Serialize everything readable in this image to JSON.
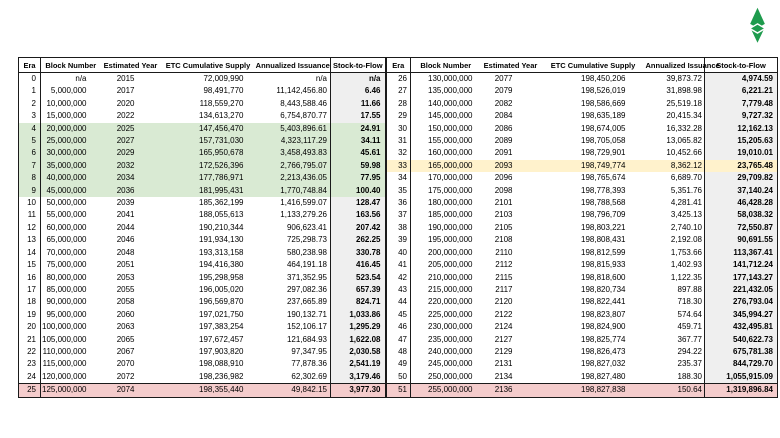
{
  "logo": {
    "label": "ethereum-classic-logo",
    "green": "#1e9b4d"
  },
  "colors": {
    "highlight_green": "#d9ead3",
    "highlight_yellow": "#fff2cc",
    "highlight_pink": "#f4cccc",
    "stock_to_flow_column_gray": "#efefef",
    "border": "#1a1a1a"
  },
  "columns": [
    "Era",
    "Block Number",
    "Estimated Year",
    "ETC Cumulative Supply",
    "Annualized Issuance",
    "Stock-to-Flow"
  ],
  "left_rows": [
    {
      "era": "0",
      "block": "n/a",
      "year": "2015",
      "supply": "72,009,990",
      "issuance": "n/a",
      "s2f": "n/a",
      "hl": ""
    },
    {
      "era": "1",
      "block": "5,000,000",
      "year": "2017",
      "supply": "98,491,770",
      "issuance": "11,142,456.80",
      "s2f": "6.46",
      "hl": ""
    },
    {
      "era": "2",
      "block": "10,000,000",
      "year": "2020",
      "supply": "118,559,270",
      "issuance": "8,443,588.46",
      "s2f": "11.66",
      "hl": ""
    },
    {
      "era": "3",
      "block": "15,000,000",
      "year": "2022",
      "supply": "134,613,270",
      "issuance": "6,754,870.77",
      "s2f": "17.55",
      "hl": ""
    },
    {
      "era": "4",
      "block": "20,000,000",
      "year": "2025",
      "supply": "147,456,470",
      "issuance": "5,403,896.61",
      "s2f": "24.91",
      "hl": "green"
    },
    {
      "era": "5",
      "block": "25,000,000",
      "year": "2027",
      "supply": "157,731,030",
      "issuance": "4,323,117.29",
      "s2f": "34.11",
      "hl": "green"
    },
    {
      "era": "6",
      "block": "30,000,000",
      "year": "2029",
      "supply": "165,950,678",
      "issuance": "3,458,493.83",
      "s2f": "45.61",
      "hl": "green"
    },
    {
      "era": "7",
      "block": "35,000,000",
      "year": "2032",
      "supply": "172,526,396",
      "issuance": "2,766,795.07",
      "s2f": "59.98",
      "hl": "green"
    },
    {
      "era": "8",
      "block": "40,000,000",
      "year": "2034",
      "supply": "177,786,971",
      "issuance": "2,213,436.05",
      "s2f": "77.95",
      "hl": "green"
    },
    {
      "era": "9",
      "block": "45,000,000",
      "year": "2036",
      "supply": "181,995,431",
      "issuance": "1,770,748.84",
      "s2f": "100.40",
      "hl": "green"
    },
    {
      "era": "10",
      "block": "50,000,000",
      "year": "2039",
      "supply": "185,362,199",
      "issuance": "1,416,599.07",
      "s2f": "128.47",
      "hl": ""
    },
    {
      "era": "11",
      "block": "55,000,000",
      "year": "2041",
      "supply": "188,055,613",
      "issuance": "1,133,279.26",
      "s2f": "163.56",
      "hl": ""
    },
    {
      "era": "12",
      "block": "60,000,000",
      "year": "2044",
      "supply": "190,210,344",
      "issuance": "906,623.41",
      "s2f": "207.42",
      "hl": ""
    },
    {
      "era": "13",
      "block": "65,000,000",
      "year": "2046",
      "supply": "191,934,130",
      "issuance": "725,298.73",
      "s2f": "262.25",
      "hl": ""
    },
    {
      "era": "14",
      "block": "70,000,000",
      "year": "2048",
      "supply": "193,313,158",
      "issuance": "580,238.98",
      "s2f": "330.78",
      "hl": ""
    },
    {
      "era": "15",
      "block": "75,000,000",
      "year": "2051",
      "supply": "194,416,380",
      "issuance": "464,191.18",
      "s2f": "416.45",
      "hl": ""
    },
    {
      "era": "16",
      "block": "80,000,000",
      "year": "2053",
      "supply": "195,298,958",
      "issuance": "371,352.95",
      "s2f": "523.54",
      "hl": ""
    },
    {
      "era": "17",
      "block": "85,000,000",
      "year": "2055",
      "supply": "196,005,020",
      "issuance": "297,082.36",
      "s2f": "657.39",
      "hl": ""
    },
    {
      "era": "18",
      "block": "90,000,000",
      "year": "2058",
      "supply": "196,569,870",
      "issuance": "237,665.89",
      "s2f": "824.71",
      "hl": ""
    },
    {
      "era": "19",
      "block": "95,000,000",
      "year": "2060",
      "supply": "197,021,750",
      "issuance": "190,132.71",
      "s2f": "1,033.86",
      "hl": ""
    },
    {
      "era": "20",
      "block": "100,000,000",
      "year": "2063",
      "supply": "197,383,254",
      "issuance": "152,106.17",
      "s2f": "1,295.29",
      "hl": ""
    },
    {
      "era": "21",
      "block": "105,000,000",
      "year": "2065",
      "supply": "197,672,457",
      "issuance": "121,684.93",
      "s2f": "1,622.08",
      "hl": ""
    },
    {
      "era": "22",
      "block": "110,000,000",
      "year": "2067",
      "supply": "197,903,820",
      "issuance": "97,347.95",
      "s2f": "2,030.58",
      "hl": ""
    },
    {
      "era": "23",
      "block": "115,000,000",
      "year": "2070",
      "supply": "198,088,910",
      "issuance": "77,878.36",
      "s2f": "2,541.19",
      "hl": ""
    },
    {
      "era": "24",
      "block": "120,000,000",
      "year": "2072",
      "supply": "198,236,982",
      "issuance": "62,302.69",
      "s2f": "3,179.46",
      "hl": ""
    },
    {
      "era": "25",
      "block": "125,000,000",
      "year": "2074",
      "supply": "198,355,440",
      "issuance": "49,842.15",
      "s2f": "3,977.30",
      "hl": "pink"
    }
  ],
  "right_rows": [
    {
      "era": "26",
      "block": "130,000,000",
      "year": "2077",
      "supply": "198,450,206",
      "issuance": "39,873.72",
      "s2f": "4,974.59",
      "hl": ""
    },
    {
      "era": "27",
      "block": "135,000,000",
      "year": "2079",
      "supply": "198,526,019",
      "issuance": "31,898.98",
      "s2f": "6,221.21",
      "hl": ""
    },
    {
      "era": "28",
      "block": "140,000,000",
      "year": "2082",
      "supply": "198,586,669",
      "issuance": "25,519.18",
      "s2f": "7,779.48",
      "hl": ""
    },
    {
      "era": "29",
      "block": "145,000,000",
      "year": "2084",
      "supply": "198,635,189",
      "issuance": "20,415.34",
      "s2f": "9,727.32",
      "hl": ""
    },
    {
      "era": "30",
      "block": "150,000,000",
      "year": "2086",
      "supply": "198,674,005",
      "issuance": "16,332.28",
      "s2f": "12,162.13",
      "hl": ""
    },
    {
      "era": "31",
      "block": "155,000,000",
      "year": "2089",
      "supply": "198,705,058",
      "issuance": "13,065.82",
      "s2f": "15,205.63",
      "hl": ""
    },
    {
      "era": "32",
      "block": "160,000,000",
      "year": "2091",
      "supply": "198,729,901",
      "issuance": "10,452.66",
      "s2f": "19,010.01",
      "hl": ""
    },
    {
      "era": "33",
      "block": "165,000,000",
      "year": "2093",
      "supply": "198,749,774",
      "issuance": "8,362.12",
      "s2f": "23,765.48",
      "hl": "yellow"
    },
    {
      "era": "34",
      "block": "170,000,000",
      "year": "2096",
      "supply": "198,765,674",
      "issuance": "6,689.70",
      "s2f": "29,709.82",
      "hl": ""
    },
    {
      "era": "35",
      "block": "175,000,000",
      "year": "2098",
      "supply": "198,778,393",
      "issuance": "5,351.76",
      "s2f": "37,140.24",
      "hl": ""
    },
    {
      "era": "36",
      "block": "180,000,000",
      "year": "2101",
      "supply": "198,788,568",
      "issuance": "4,281.41",
      "s2f": "46,428.28",
      "hl": ""
    },
    {
      "era": "37",
      "block": "185,000,000",
      "year": "2103",
      "supply": "198,796,709",
      "issuance": "3,425.13",
      "s2f": "58,038.32",
      "hl": ""
    },
    {
      "era": "38",
      "block": "190,000,000",
      "year": "2105",
      "supply": "198,803,221",
      "issuance": "2,740.10",
      "s2f": "72,550.87",
      "hl": ""
    },
    {
      "era": "39",
      "block": "195,000,000",
      "year": "2108",
      "supply": "198,808,431",
      "issuance": "2,192.08",
      "s2f": "90,691.55",
      "hl": ""
    },
    {
      "era": "40",
      "block": "200,000,000",
      "year": "2110",
      "supply": "198,812,599",
      "issuance": "1,753.66",
      "s2f": "113,367.41",
      "hl": ""
    },
    {
      "era": "41",
      "block": "205,000,000",
      "year": "2112",
      "supply": "198,815,933",
      "issuance": "1,402.93",
      "s2f": "141,712.24",
      "hl": ""
    },
    {
      "era": "42",
      "block": "210,000,000",
      "year": "2115",
      "supply": "198,818,600",
      "issuance": "1,122.35",
      "s2f": "177,143.27",
      "hl": ""
    },
    {
      "era": "43",
      "block": "215,000,000",
      "year": "2117",
      "supply": "198,820,734",
      "issuance": "897.88",
      "s2f": "221,432.05",
      "hl": ""
    },
    {
      "era": "44",
      "block": "220,000,000",
      "year": "2120",
      "supply": "198,822,441",
      "issuance": "718.30",
      "s2f": "276,793.04",
      "hl": ""
    },
    {
      "era": "45",
      "block": "225,000,000",
      "year": "2122",
      "supply": "198,823,807",
      "issuance": "574.64",
      "s2f": "345,994.27",
      "hl": ""
    },
    {
      "era": "46",
      "block": "230,000,000",
      "year": "2124",
      "supply": "198,824,900",
      "issuance": "459.71",
      "s2f": "432,495.81",
      "hl": ""
    },
    {
      "era": "47",
      "block": "235,000,000",
      "year": "2127",
      "supply": "198,825,774",
      "issuance": "367.77",
      "s2f": "540,622.73",
      "hl": ""
    },
    {
      "era": "48",
      "block": "240,000,000",
      "year": "2129",
      "supply": "198,826,473",
      "issuance": "294.22",
      "s2f": "675,781.38",
      "hl": ""
    },
    {
      "era": "49",
      "block": "245,000,000",
      "year": "2131",
      "supply": "198,827,032",
      "issuance": "235.37",
      "s2f": "844,729.70",
      "hl": ""
    },
    {
      "era": "50",
      "block": "250,000,000",
      "year": "2134",
      "supply": "198,827,480",
      "issuance": "188.30",
      "s2f": "1,055,915.09",
      "hl": ""
    },
    {
      "era": "51",
      "block": "255,000,000",
      "year": "2136",
      "supply": "198,827,838",
      "issuance": "150.64",
      "s2f": "1,319,896.84",
      "hl": "pink"
    }
  ]
}
